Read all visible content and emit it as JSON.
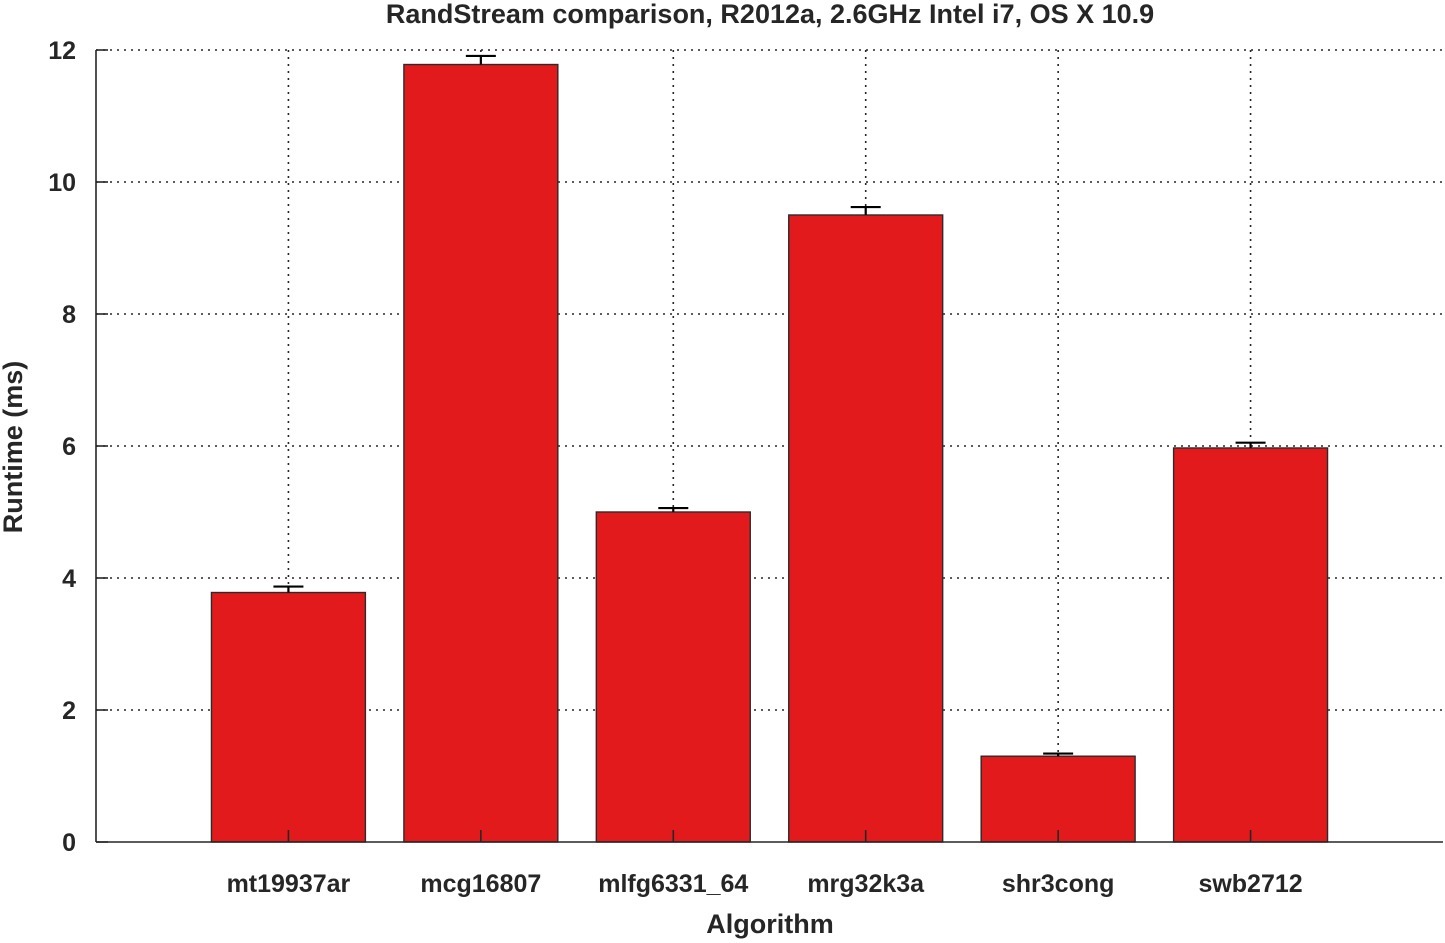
{
  "chart_data": {
    "type": "bar",
    "title": "RandStream comparison, R2012a, 2.6GHz Intel i7, OS X 10.9",
    "xlabel": "Algorithm",
    "ylabel": "Runtime (ms)",
    "categories": [
      "mt19937ar",
      "mcg16807",
      "mlfg6331_64",
      "mrg32k3a",
      "shr3cong",
      "swb2712"
    ],
    "values": [
      3.78,
      11.78,
      5.0,
      9.5,
      1.3,
      5.97
    ],
    "error_upper": [
      0.09,
      0.13,
      0.06,
      0.12,
      0.04,
      0.08
    ],
    "ylim": [
      0,
      12
    ],
    "yticks": [
      0,
      2,
      4,
      6,
      8,
      10,
      12
    ],
    "grid": true,
    "bar_color": "#e31a1c"
  }
}
